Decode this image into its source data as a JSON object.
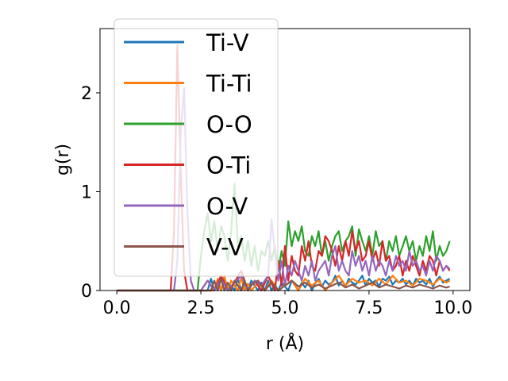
{
  "chart_data": {
    "type": "line",
    "title": "",
    "xlabel": "r (Å)",
    "ylabel": "g(r)",
    "xlim": [
      -0.5,
      10.5
    ],
    "ylim": [
      0,
      2.65
    ],
    "x_ticks": [
      0.0,
      2.5,
      5.0,
      7.5,
      10.0
    ],
    "x_tick_labels": [
      "0.0",
      "2.5",
      "5.0",
      "7.5",
      "10.0"
    ],
    "y_ticks": [
      0,
      1,
      2
    ],
    "y_tick_labels": [
      "0",
      "1",
      "2"
    ],
    "grid": false,
    "legend_position": "upper-left",
    "series": [
      {
        "name": "Ti-V",
        "color": "#1f77b4",
        "x": [
          0,
          1,
          2,
          2.5,
          2.7,
          2.8,
          2.9,
          3.0,
          3.1,
          3.2,
          3.3,
          3.4,
          3.5,
          3.6,
          3.7,
          3.8,
          3.9,
          4.0,
          4.1,
          4.2,
          4.3,
          4.4,
          4.5,
          4.6,
          4.7,
          4.8,
          4.9,
          5.0,
          5.1,
          5.2,
          5.3,
          5.4,
          5.5,
          5.6,
          5.7,
          5.8,
          5.9,
          6.0,
          6.1,
          6.2,
          6.3,
          6.4,
          6.5,
          6.6,
          6.7,
          6.8,
          6.9,
          7.0,
          7.1,
          7.2,
          7.3,
          7.4,
          7.5,
          7.6,
          7.7,
          7.8,
          7.9,
          8.0,
          8.1,
          8.2,
          8.3,
          8.4,
          8.5,
          8.6,
          8.7,
          8.8,
          8.9,
          9.0,
          9.1,
          9.2,
          9.3,
          9.4,
          9.5,
          9.6,
          9.7,
          9.8,
          9.9
        ],
        "y": [
          0,
          0,
          0,
          0,
          0,
          0.12,
          0,
          0.08,
          0,
          0.1,
          0,
          0.05,
          0,
          0.12,
          0,
          0.06,
          0,
          0.1,
          0.05,
          0,
          0.08,
          0,
          0.1,
          0,
          0.06,
          0,
          0.08,
          0.04,
          0,
          0.1,
          0.05,
          0,
          0.08,
          0.03,
          0.1,
          0,
          0.07,
          0.12,
          0.04,
          0.1,
          0.06,
          0.08,
          0.15,
          0.05,
          0.1,
          0.04,
          0.12,
          0.08,
          0.06,
          0.1,
          0.15,
          0.05,
          0.12,
          0.08,
          0.1,
          0.04,
          0.12,
          0.1,
          0.14,
          0.06,
          0.1,
          0.08,
          0.12,
          0.06,
          0.1,
          0.05,
          0.12,
          0.08,
          0.1,
          0.06,
          0.12,
          0.04,
          0.1,
          0.14,
          0.08,
          0.1,
          0.12
        ]
      },
      {
        "name": "Ti-Ti",
        "color": "#ff7f0e",
        "x": [
          0,
          1,
          2,
          2.9,
          3.0,
          3.1,
          3.2,
          3.3,
          3.4,
          3.5,
          3.6,
          3.7,
          3.8,
          3.9,
          4.0,
          4.2,
          4.4,
          4.6,
          4.8,
          5.0,
          5.2,
          5.4,
          5.6,
          5.8,
          6.0,
          6.2,
          6.4,
          6.6,
          6.8,
          7.0,
          7.2,
          7.4,
          7.6,
          7.8,
          8.0,
          8.2,
          8.4,
          8.6,
          8.8,
          9.0,
          9.2,
          9.4,
          9.6,
          9.8,
          9.9
        ],
        "y": [
          0,
          0,
          0,
          0,
          0.12,
          0,
          0.15,
          0,
          0.1,
          0.05,
          0,
          0.13,
          0,
          0.07,
          0,
          0.08,
          0,
          0.1,
          0,
          0.05,
          0.1,
          0,
          0.12,
          0.05,
          0.1,
          0,
          0.08,
          0.15,
          0.05,
          0.12,
          0.08,
          0.1,
          0.05,
          0.12,
          0.06,
          0.15,
          0.08,
          0.1,
          0.05,
          0.12,
          0.1,
          0.06,
          0.12,
          0.08,
          0.1
        ]
      },
      {
        "name": "O-O",
        "color": "#2ca02c",
        "x": [
          0,
          1,
          2,
          2.4,
          2.5,
          2.6,
          2.7,
          2.8,
          2.9,
          3.0,
          3.1,
          3.2,
          3.3,
          3.4,
          3.5,
          3.6,
          3.7,
          3.8,
          3.9,
          4.0,
          4.1,
          4.2,
          4.3,
          4.4,
          4.5,
          4.6,
          4.7,
          4.8,
          4.9,
          5.0,
          5.1,
          5.2,
          5.3,
          5.4,
          5.5,
          5.6,
          5.7,
          5.8,
          5.9,
          6.0,
          6.1,
          6.2,
          6.3,
          6.4,
          6.5,
          6.6,
          6.7,
          6.8,
          6.9,
          7.0,
          7.1,
          7.2,
          7.3,
          7.4,
          7.5,
          7.6,
          7.7,
          7.8,
          7.9,
          8.0,
          8.1,
          8.2,
          8.3,
          8.4,
          8.5,
          8.6,
          8.7,
          8.8,
          8.9,
          9.0,
          9.1,
          9.2,
          9.3,
          9.4,
          9.5,
          9.6,
          9.7,
          9.8,
          9.9
        ],
        "y": [
          0,
          0,
          0,
          0,
          0.35,
          0.6,
          0.78,
          0.5,
          0.7,
          0.4,
          0.65,
          0.55,
          0.3,
          0.6,
          1.08,
          0.45,
          0.55,
          0.3,
          0.5,
          0.25,
          0.45,
          0.2,
          0.4,
          0.35,
          0.5,
          0.3,
          0.45,
          0.2,
          0.4,
          0.25,
          0.7,
          0.45,
          0.6,
          0.5,
          0.65,
          0.4,
          0.35,
          0.55,
          0.45,
          0.6,
          0.35,
          0.5,
          0.3,
          0.45,
          0.55,
          0.6,
          0.4,
          0.5,
          0.55,
          0.65,
          0.35,
          0.62,
          0.5,
          0.4,
          0.55,
          0.35,
          0.6,
          0.45,
          0.5,
          0.3,
          0.5,
          0.4,
          0.55,
          0.35,
          0.45,
          0.55,
          0.4,
          0.5,
          0.3,
          0.45,
          0.35,
          0.55,
          0.4,
          0.6,
          0.3,
          0.45,
          0.35,
          0.4,
          0.5
        ]
      },
      {
        "name": "O-Ti",
        "color": "#d62728",
        "x": [
          0,
          1,
          1.6,
          1.7,
          1.8,
          1.9,
          2.0,
          2.1,
          2.2,
          2.3,
          2.5,
          2.7,
          2.9,
          3.1,
          3.3,
          3.5,
          3.7,
          3.9,
          4.1,
          4.3,
          4.5,
          4.7,
          4.8,
          4.9,
          5.0,
          5.1,
          5.2,
          5.3,
          5.4,
          5.5,
          5.6,
          5.7,
          5.8,
          5.9,
          6.0,
          6.1,
          6.2,
          6.3,
          6.4,
          6.5,
          6.6,
          6.7,
          6.8,
          6.9,
          7.0,
          7.1,
          7.2,
          7.3,
          7.4,
          7.5,
          7.6,
          7.7,
          7.8,
          7.9,
          8.0,
          8.1,
          8.2,
          8.3,
          8.4,
          8.5,
          8.6,
          8.7,
          8.8,
          8.9,
          9.0,
          9.1,
          9.2,
          9.3,
          9.4,
          9.5,
          9.6,
          9.7,
          9.8,
          9.9
        ],
        "y": [
          0,
          0,
          0,
          0.6,
          2.48,
          1.2,
          0.2,
          0,
          0,
          0,
          0,
          0.1,
          0,
          0.15,
          0,
          0.08,
          0.2,
          0,
          0.1,
          0,
          0.15,
          0,
          0.3,
          0.05,
          0.45,
          0.1,
          0.35,
          0.2,
          0.15,
          0.45,
          0.3,
          0.5,
          0.25,
          0.2,
          0.4,
          0.35,
          0.55,
          0.5,
          0.4,
          0.25,
          0.45,
          0.3,
          0.5,
          0.35,
          0.6,
          0.4,
          0.5,
          0.3,
          0.35,
          0.5,
          0.3,
          0.4,
          0.25,
          0.5,
          0.3,
          0.35,
          0.2,
          0.25,
          0.35,
          0.15,
          0.3,
          0.2,
          0.35,
          0.25,
          0.15,
          0.3,
          0.2,
          0.35,
          0.3,
          0.15,
          0.3,
          0.2,
          0.25,
          0.2
        ]
      },
      {
        "name": "O-V",
        "color": "#9467bd",
        "x": [
          0,
          1,
          1.7,
          1.8,
          1.9,
          2.0,
          2.1,
          2.2,
          2.3,
          2.5,
          2.7,
          2.9,
          3.1,
          3.3,
          3.5,
          3.7,
          3.9,
          4.1,
          4.3,
          4.5,
          4.6,
          4.7,
          4.8,
          4.9,
          5.0,
          5.1,
          5.2,
          5.3,
          5.4,
          5.5,
          5.6,
          5.7,
          5.8,
          5.9,
          6.0,
          6.1,
          6.2,
          6.3,
          6.4,
          6.5,
          6.6,
          6.7,
          6.8,
          6.9,
          7.0,
          7.1,
          7.2,
          7.3,
          7.4,
          7.5,
          7.6,
          7.7,
          7.8,
          7.9,
          8.0,
          8.1,
          8.2,
          8.3,
          8.4,
          8.5,
          8.6,
          8.7,
          8.8,
          8.9,
          9.0,
          9.1,
          9.2,
          9.3,
          9.4,
          9.5,
          9.6,
          9.7,
          9.8,
          9.9
        ],
        "y": [
          0,
          0,
          0,
          0.3,
          1.6,
          2.05,
          0.8,
          0.1,
          0,
          0,
          0.1,
          0,
          0.12,
          0,
          0.08,
          0.15,
          0,
          0.1,
          0.05,
          0.15,
          0.72,
          0.4,
          0.1,
          0.3,
          0.05,
          0.25,
          0.15,
          0.3,
          0.2,
          0.1,
          0.25,
          0.15,
          0.3,
          0.1,
          0.2,
          0.25,
          0.3,
          0.15,
          0.35,
          0.45,
          0.2,
          0.3,
          0.2,
          0.15,
          0.4,
          0.25,
          0.35,
          0.2,
          0.3,
          0.15,
          0.35,
          0.2,
          0.3,
          0.25,
          0.15,
          0.3,
          0.2,
          0.35,
          0.25,
          0.3,
          0.2,
          0.4,
          0.25,
          0.3,
          0.2,
          0.25,
          0.15,
          0.3,
          0.2,
          0.35,
          0.3,
          0.2,
          0.25,
          0.22
        ]
      },
      {
        "name": "V-V",
        "color": "#8c564b",
        "x": [
          0,
          1,
          2,
          2.8,
          2.9,
          3.0,
          3.1,
          3.2,
          3.3,
          3.4,
          3.5,
          3.6,
          3.7,
          3.8,
          3.9,
          4.0,
          4.2,
          4.4,
          4.6,
          4.8,
          5.0,
          5.2,
          5.4,
          5.6,
          5.8,
          6.0,
          6.2,
          6.4,
          6.6,
          6.8,
          7.0,
          7.2,
          7.4,
          7.6,
          7.8,
          8.0,
          8.2,
          8.4,
          8.6,
          8.8,
          9.0,
          9.2,
          9.4,
          9.6,
          9.8,
          9.9
        ],
        "y": [
          0,
          0,
          0,
          0,
          0.1,
          0,
          0.12,
          0,
          0.08,
          0,
          0.1,
          0.05,
          0,
          0.1,
          0,
          0.06,
          0.1,
          0,
          0.08,
          0,
          0.05,
          0.1,
          0.04,
          0.08,
          0.03,
          0.06,
          0.02,
          0.05,
          0.08,
          0.03,
          0.06,
          0.02,
          0.05,
          0.08,
          0.03,
          0.06,
          0.04,
          0.02,
          0.05,
          0.03,
          0.06,
          0.04,
          0.02,
          0.05,
          0.03,
          0.04
        ]
      }
    ]
  }
}
